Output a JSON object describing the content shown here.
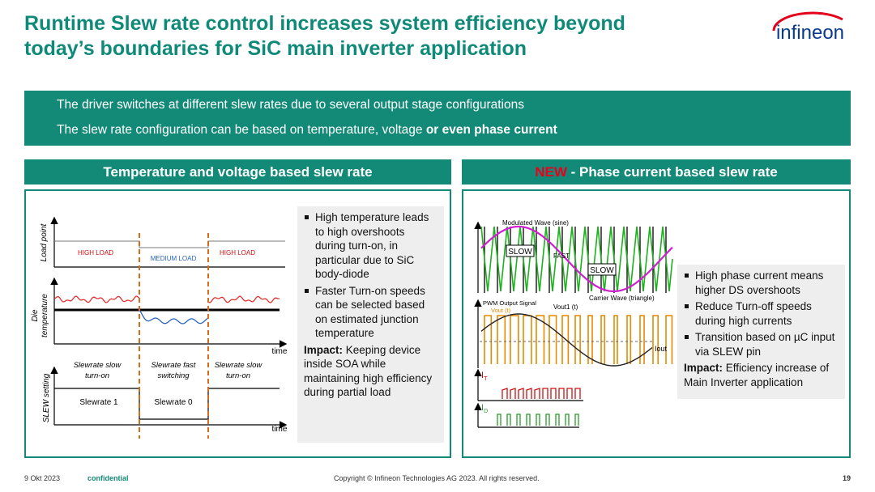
{
  "header": {
    "title_line1": "Runtime Slew rate control increases system efficiency beyond",
    "title_line2": "today’s boundaries for SiC main inverter application",
    "logo": "infineon"
  },
  "banner": {
    "line1": "The driver switches at different slew rates due to several output stage configurations",
    "line2": "The slew rate configuration can be based on temperature, voltage",
    "line2_bold": "or even phase current"
  },
  "left_panel": {
    "heading": "Temperature and voltage based slew rate",
    "diagram": {
      "load_axis": "Load point",
      "load_levels": [
        "HIGH LOAD",
        "MEDIUM LOAD",
        "HIGH LOAD"
      ],
      "temp_axis": [
        "Die",
        "temperature"
      ],
      "time_label": "time",
      "phases": [
        [
          "Slewrate slow",
          "turn-on"
        ],
        [
          "Slewrate fast",
          "switching"
        ],
        [
          "Slewrate slow",
          "turn-on"
        ]
      ],
      "slew_axis": "SLEW setting",
      "slew_levels": [
        "Slewrate 1",
        "Slewrate 0"
      ],
      "time_label_2": "time"
    },
    "bullets": [
      "High temperature leads to high overshoots during turn-on, in particular due to SiC body-diode",
      "Faster Turn-on speeds can be selected based on estimated junction temperature"
    ],
    "impact_label": "Impact:",
    "impact_text": "Keeping device inside SOA while maintaining high efficiency during partial load"
  },
  "right_panel": {
    "heading_highlight": "NEW",
    "heading": "- Phase current based slew rate",
    "diagram": {
      "modulated": "Modulated Wave (sine)",
      "slow_1": "SLOW",
      "fast": "FAST",
      "slow_2": "SLOW",
      "carrier": "Carrier Wave (triangle)",
      "pwm": "PWM Output Signal",
      "vout": "Vout (t)",
      "vout1": "Vout1 (t)",
      "iout": "Iout",
      "it_symbol": "I",
      "it_sub": "T",
      "id_symbol": "I",
      "id_sub": "D"
    },
    "bullets": [
      "High phase current means higher DS overshoots",
      "Reduce Turn-off speeds during high currents",
      "Transition based on µC input via SLEW pin"
    ],
    "impact_label": "Impact:",
    "impact_text": "Efficiency increase of Main Inverter application"
  },
  "footer": {
    "date": "9 Okt 2023",
    "confidential": "confidential",
    "copyright": "Copyright © Infineon Technologies AG 2023. All rights reserved.",
    "page": "19"
  }
}
